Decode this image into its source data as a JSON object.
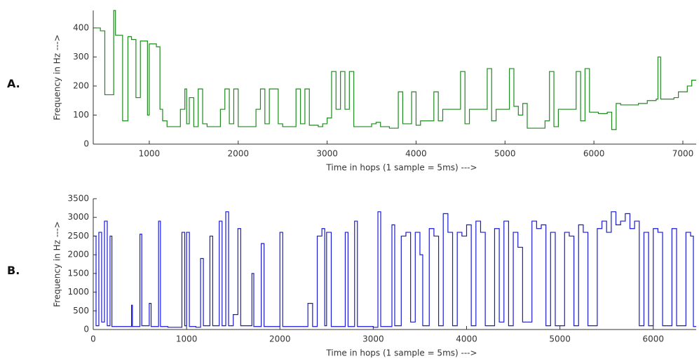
{
  "chart_data": [
    {
      "type": "line",
      "panel_label": "A.",
      "ylabel": "Frequency in Hz --->",
      "xlabel": "Time in hops (1 sample = 5ms)  --->",
      "color": "#1f8a1f",
      "drawstyle": "steps-post",
      "grid": false,
      "xlim": [
        370,
        7150
      ],
      "ylim": [
        0,
        460
      ],
      "xticks": [
        1000,
        2000,
        3000,
        4000,
        5000,
        6000,
        7000
      ],
      "yticks": [
        0,
        100,
        200,
        300,
        400
      ],
      "x": [
        370,
        450,
        500,
        600,
        620,
        700,
        760,
        800,
        850,
        900,
        980,
        1000,
        1080,
        1120,
        1150,
        1200,
        1300,
        1350,
        1400,
        1420,
        1450,
        1500,
        1550,
        1600,
        1650,
        1750,
        1800,
        1850,
        1900,
        1950,
        2000,
        2100,
        2200,
        2250,
        2300,
        2350,
        2450,
        2500,
        2600,
        2650,
        2700,
        2750,
        2800,
        2900,
        2950,
        3000,
        3050,
        3100,
        3150,
        3200,
        3250,
        3300,
        3400,
        3500,
        3550,
        3600,
        3700,
        3750,
        3800,
        3850,
        3950,
        4000,
        4050,
        4200,
        4250,
        4300,
        4400,
        4500,
        4550,
        4600,
        4700,
        4800,
        4850,
        4900,
        5000,
        5050,
        5100,
        5150,
        5200,
        5250,
        5350,
        5450,
        5500,
        5550,
        5600,
        5700,
        5800,
        5850,
        5900,
        5950,
        6000,
        6050,
        6150,
        6200,
        6250,
        6300,
        6500,
        6600,
        6700,
        6720,
        6750,
        6900,
        6950,
        7050,
        7100,
        7150
      ],
      "values": [
        400,
        390,
        170,
        460,
        375,
        80,
        370,
        360,
        160,
        355,
        100,
        345,
        335,
        120,
        80,
        60,
        60,
        120,
        190,
        70,
        160,
        60,
        190,
        70,
        60,
        60,
        120,
        190,
        70,
        190,
        60,
        60,
        120,
        190,
        70,
        190,
        70,
        60,
        60,
        190,
        70,
        190,
        65,
        60,
        70,
        90,
        250,
        120,
        250,
        120,
        250,
        60,
        60,
        70,
        75,
        60,
        55,
        55,
        180,
        70,
        180,
        65,
        80,
        180,
        80,
        120,
        120,
        250,
        70,
        120,
        120,
        260,
        80,
        120,
        120,
        260,
        130,
        100,
        140,
        55,
        55,
        80,
        250,
        60,
        120,
        120,
        250,
        80,
        260,
        110,
        110,
        105,
        110,
        50,
        140,
        135,
        140,
        150,
        155,
        300,
        155,
        160,
        180,
        200,
        220,
        220
      ]
    },
    {
      "type": "line",
      "panel_label": "B.",
      "ylabel": "Frequency in Hz --->",
      "xlabel": "Time in hops (1 sample = 5ms)  --->",
      "color": "#1a1ad2",
      "drawstyle": "steps-post",
      "grid": false,
      "xlim": [
        0,
        6460
      ],
      "ylim": [
        0,
        3500
      ],
      "xticks": [
        0,
        1000,
        2000,
        3000,
        4000,
        5000,
        6000
      ],
      "yticks": [
        0,
        500,
        1000,
        1500,
        2000,
        2500,
        3000,
        3500
      ],
      "x": [
        0,
        30,
        60,
        90,
        120,
        150,
        180,
        200,
        400,
        410,
        420,
        500,
        520,
        600,
        620,
        700,
        720,
        800,
        950,
        980,
        1000,
        1030,
        1100,
        1150,
        1180,
        1250,
        1280,
        1350,
        1380,
        1420,
        1450,
        1500,
        1550,
        1580,
        1700,
        1720,
        1800,
        1830,
        1900,
        2000,
        2030,
        2200,
        2300,
        2350,
        2400,
        2450,
        2480,
        2500,
        2550,
        2700,
        2730,
        2800,
        2830,
        2900,
        3000,
        3050,
        3080,
        3200,
        3230,
        3300,
        3350,
        3400,
        3450,
        3500,
        3530,
        3600,
        3650,
        3700,
        3750,
        3800,
        3850,
        3900,
        3950,
        4000,
        4050,
        4100,
        4150,
        4200,
        4300,
        4350,
        4400,
        4450,
        4500,
        4550,
        4600,
        4700,
        4750,
        4800,
        4850,
        4900,
        4950,
        5050,
        5100,
        5150,
        5200,
        5250,
        5300,
        5400,
        5450,
        5500,
        5550,
        5600,
        5650,
        5700,
        5750,
        5800,
        5850,
        5900,
        5950,
        6000,
        6050,
        6100,
        6200,
        6250,
        6350,
        6400,
        6430,
        6460
      ],
      "values": [
        2500,
        100,
        2600,
        200,
        2900,
        100,
        2500,
        80,
        80,
        650,
        80,
        2550,
        100,
        700,
        80,
        2900,
        80,
        60,
        2600,
        100,
        2600,
        80,
        60,
        1900,
        100,
        2500,
        100,
        2900,
        100,
        3150,
        100,
        400,
        2700,
        100,
        1500,
        80,
        2300,
        80,
        80,
        2600,
        80,
        80,
        700,
        80,
        2500,
        2700,
        100,
        2600,
        80,
        2600,
        80,
        2900,
        80,
        80,
        60,
        3150,
        80,
        2800,
        100,
        2500,
        2600,
        200,
        2600,
        2000,
        100,
        2700,
        2500,
        100,
        3100,
        2600,
        100,
        2600,
        2500,
        2800,
        100,
        2900,
        2600,
        100,
        2700,
        200,
        2900,
        100,
        2600,
        2200,
        200,
        2900,
        2700,
        2800,
        100,
        2600,
        100,
        2600,
        2500,
        100,
        2800,
        2600,
        100,
        2700,
        2900,
        2600,
        3150,
        2800,
        2900,
        3100,
        2700,
        2900,
        100,
        2600,
        100,
        2700,
        2600,
        100,
        2700,
        100,
        2600,
        2500,
        80,
        80
      ]
    }
  ]
}
